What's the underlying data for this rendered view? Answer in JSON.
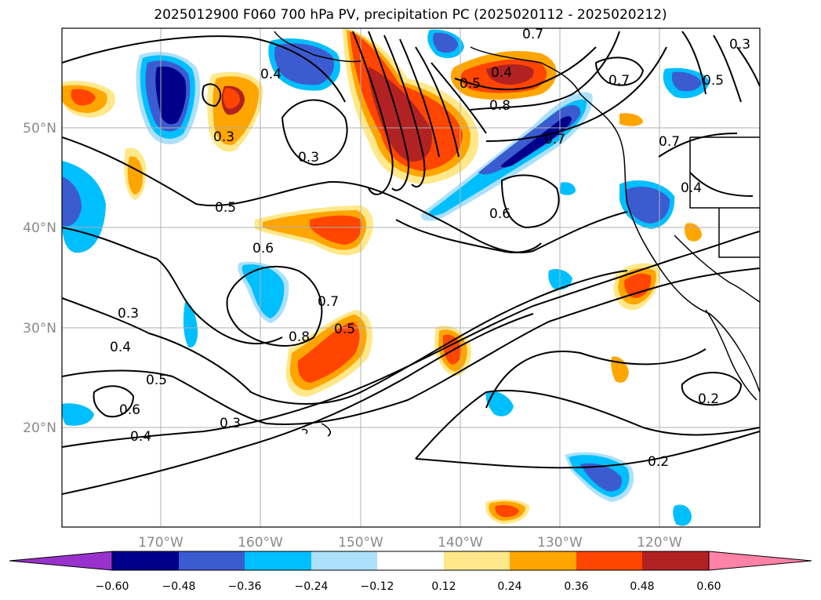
{
  "title": "2025012900 F060 700 hPa PV, precipitation PC (2025020112 - 2025020212)",
  "map": {
    "lon_ticks": [
      "170°W",
      "160°W",
      "150°W",
      "140°W",
      "130°W",
      "120°W"
    ],
    "lat_ticks": [
      "50°N",
      "40°N",
      "30°N",
      "20°N"
    ],
    "contour_labels": [
      "0.7",
      "0.3",
      "0.4",
      "0.3",
      "0.5",
      "0.6",
      "0.7",
      "0.8",
      "0.5",
      "0.3",
      "0.4",
      "0.5",
      "0.6",
      "0.4",
      "0.3",
      "0.8",
      "0.7",
      "0.6",
      "0.5",
      "0.4",
      "0.7",
      "0.2",
      "0.2",
      "0.4",
      "0.7",
      "0.5",
      "0.3"
    ],
    "grid": "on"
  },
  "colorbar": {
    "ticks": [
      "−0.60",
      "−0.48",
      "−0.36",
      "−0.24",
      "−0.12",
      "0.12",
      "0.24",
      "0.36",
      "0.48",
      "0.60"
    ],
    "colors": [
      "#9932cc",
      "#00008b",
      "#3b5bd1",
      "#00bfff",
      "#ade1fb",
      "#ffffff",
      "#ffe88a",
      "#ffa500",
      "#ff4500",
      "#b22222",
      "#ff82a7"
    ],
    "extend": "both"
  }
}
